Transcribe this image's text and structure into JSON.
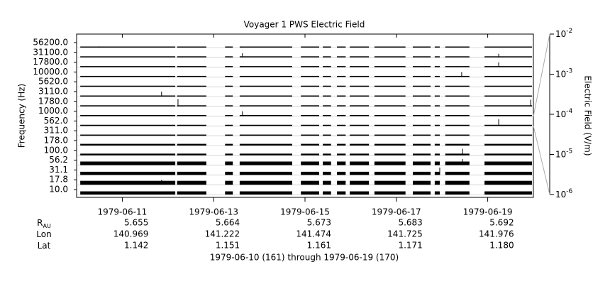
{
  "chart_data": {
    "type": "channel-stack",
    "title": "Voyager 1 PWS Electric Field",
    "ylabel": "Frequency (Hz)",
    "y2label": "Electric Field (V/m)",
    "footer": "1979-06-10 (161) through 1979-06-19 (170)",
    "channels": [
      {
        "name": "10.0",
        "level": 2e-05
      },
      {
        "name": "17.8",
        "level": 4e-05
      },
      {
        "name": "31.1",
        "level": 2e-05
      },
      {
        "name": "56.2",
        "level": 3e-05
      },
      {
        "name": "100.0",
        "level": 5e-06
      },
      {
        "name": "178.0",
        "level": 5e-06
      },
      {
        "name": "311.0",
        "level": 3e-06
      },
      {
        "name": "562.0",
        "level": 3e-06
      },
      {
        "name": "1000.0",
        "level": 3e-06
      },
      {
        "name": "1780.0",
        "level": 1.5e-06
      },
      {
        "name": "3110.0",
        "level": 1.5e-06
      },
      {
        "name": "5620.0",
        "level": 1.5e-06
      },
      {
        "name": "10000.0",
        "level": 1.5e-06
      },
      {
        "name": "17800.0",
        "level": 1.5e-06
      },
      {
        "name": "31100.0",
        "level": 1.5e-06
      },
      {
        "name": "56200.0",
        "level": 1.5e-06
      }
    ],
    "xlim": [
      161,
      171
    ],
    "xticks": [
      {
        "value": 162,
        "label": "1979-06-11"
      },
      {
        "value": 164,
        "label": "1979-06-13"
      },
      {
        "value": 166,
        "label": "1979-06-15"
      },
      {
        "value": 168,
        "label": "1979-06-17"
      },
      {
        "value": 170,
        "label": "1979-06-19"
      }
    ],
    "coverage": [
      161.08,
      170.97
    ],
    "gaps": [
      [
        163.16,
        163.2
      ],
      [
        163.84,
        164.25
      ],
      [
        164.42,
        164.57
      ],
      [
        165.72,
        165.91
      ],
      [
        166.31,
        166.39
      ],
      [
        166.57,
        166.7
      ],
      [
        166.89,
        166.98
      ],
      [
        167.4,
        167.52
      ],
      [
        168.2,
        168.36
      ],
      [
        168.75,
        168.84
      ],
      [
        168.95,
        169.07
      ],
      [
        169.6,
        169.93
      ]
    ],
    "spikes": [
      {
        "day": 161.5,
        "channel": 15,
        "value": 3e-06
      },
      {
        "day": 164.63,
        "channel": 14,
        "value": 5e-05
      },
      {
        "day": 169.43,
        "channel": 12,
        "value": 0.0001
      },
      {
        "day": 170.24,
        "channel": 13,
        "value": 0.0001
      },
      {
        "day": 170.24,
        "channel": 14,
        "value": 3e-05
      },
      {
        "day": 162.86,
        "channel": 10,
        "value": 0.0001
      },
      {
        "day": 163.22,
        "channel": 9,
        "value": 0.001
      },
      {
        "day": 164.63,
        "channel": 8,
        "value": 0.0001
      },
      {
        "day": 170.94,
        "channel": 9,
        "value": 0.0005
      },
      {
        "day": 170.24,
        "channel": 7,
        "value": 0.0005
      },
      {
        "day": 169.45,
        "channel": 4,
        "value": 0.0005
      },
      {
        "day": 169.45,
        "channel": 3,
        "value": 0.0003
      },
      {
        "day": 168.95,
        "channel": 2,
        "value": 0.001
      },
      {
        "day": 162.86,
        "channel": 1,
        "value": 0.0001
      }
    ],
    "y2lim": [
      1e-06,
      0.01
    ],
    "y2scale": "log",
    "y2ticks": [
      {
        "value": 0.01,
        "label": "10",
        "exp": "-2"
      },
      {
        "value": 0.001,
        "label": "10",
        "exp": "-3"
      },
      {
        "value": 0.0001,
        "label": "10",
        "exp": "-4"
      },
      {
        "value": 1e-05,
        "label": "10",
        "exp": "-5"
      },
      {
        "value": 1e-06,
        "label": "10",
        "exp": "-6"
      }
    ],
    "ephemeris": [
      {
        "label": "R",
        "sub": "AU",
        "values": [
          "5.655",
          "5.664",
          "5.673",
          "5.683",
          "5.692"
        ]
      },
      {
        "label": "Lon",
        "values": [
          "140.969",
          "141.222",
          "141.474",
          "141.725",
          "141.976"
        ]
      },
      {
        "label": "Lat",
        "values": [
          "1.142",
          "1.151",
          "1.161",
          "1.171",
          "1.180"
        ]
      }
    ]
  }
}
